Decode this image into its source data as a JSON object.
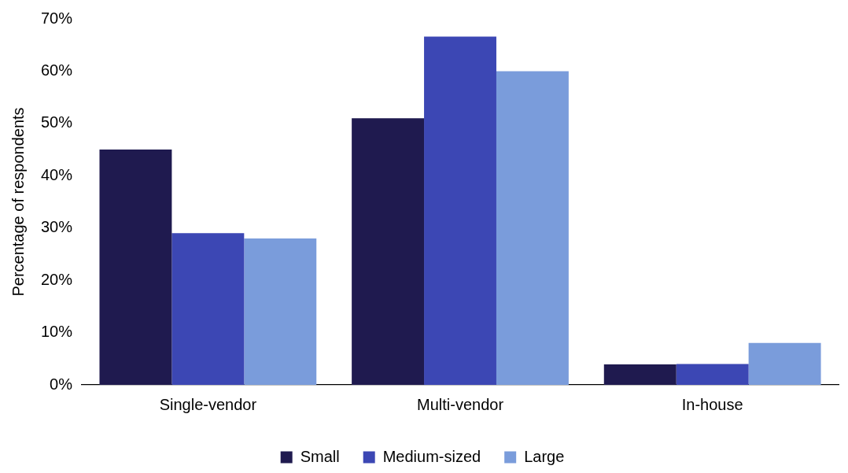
{
  "chart_data": {
    "type": "bar",
    "ylabel": "Percentage of respondents",
    "categories": [
      "Single-vendor",
      "Multi-vendor",
      "In-house"
    ],
    "series": [
      {
        "name": "Small",
        "color": "#1f1a4f",
        "values": [
          45,
          51,
          3.9
        ]
      },
      {
        "name": "Medium-sized",
        "color": "#3c47b4",
        "values": [
          29,
          66.6,
          4
        ]
      },
      {
        "name": "Large",
        "color": "#7a9cdb",
        "values": [
          28,
          60,
          8
        ]
      }
    ],
    "ylim": [
      0,
      70
    ],
    "yticks": [
      {
        "value": 0,
        "label": "0%"
      },
      {
        "value": 10,
        "label": "10%"
      },
      {
        "value": 20,
        "label": "20%"
      },
      {
        "value": 30,
        "label": "30%"
      },
      {
        "value": 40,
        "label": "40%"
      },
      {
        "value": 50,
        "label": "50%"
      },
      {
        "value": 60,
        "label": "60%"
      },
      {
        "value": 70,
        "label": "70%"
      }
    ],
    "grid": false,
    "legend": "bottom"
  }
}
